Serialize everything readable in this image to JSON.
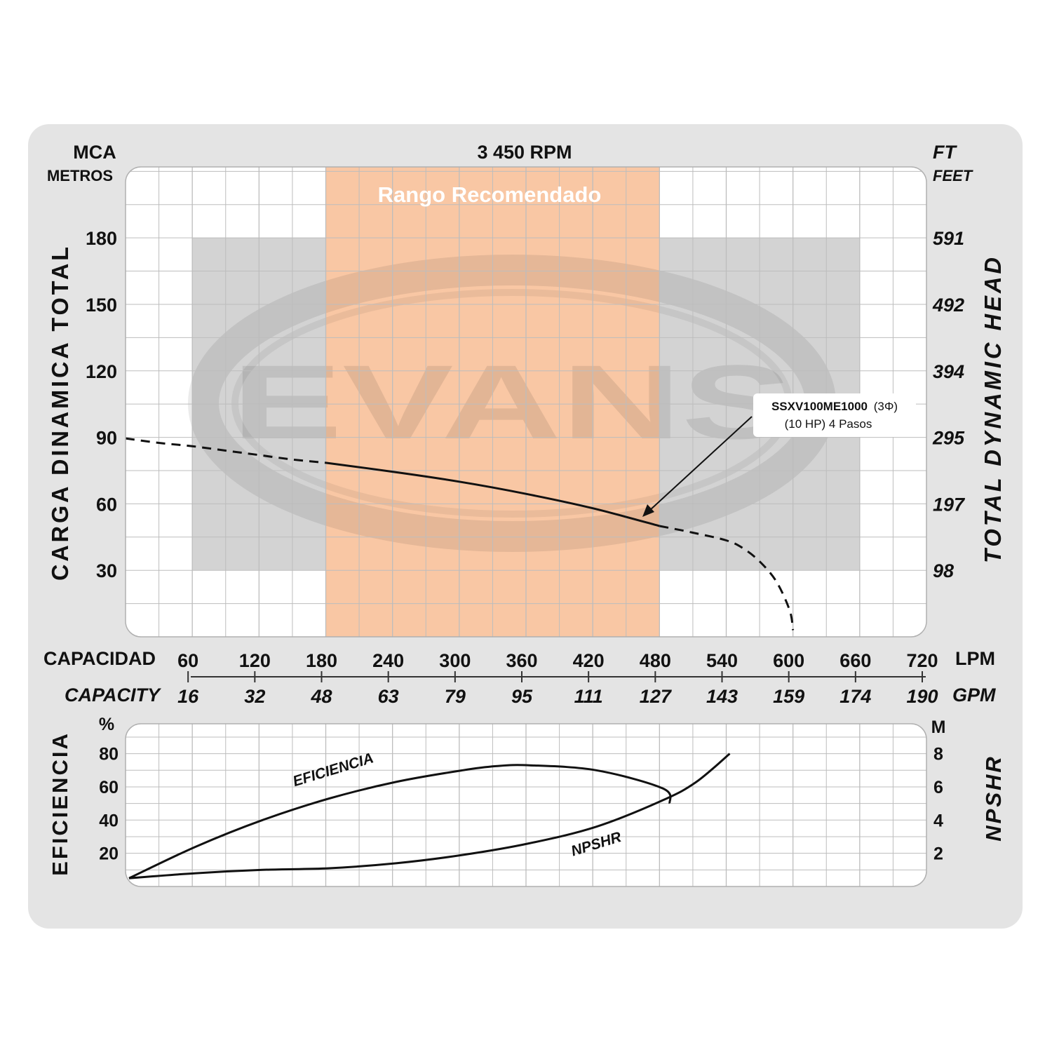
{
  "header": {
    "left_unit": "MCA",
    "left_unit_sub": "METROS",
    "title": "3 450 RPM",
    "right_unit": "FT",
    "right_unit_sub": "FEET"
  },
  "watermark": "EVANS",
  "recommended_range_label": "Rango Recomendado",
  "annotation": {
    "model": "SSXV100ME1000",
    "phase": "(3Φ)",
    "detail": "(10 HP) 4 Pasos"
  },
  "colors": {
    "frame": "#e4e4e4",
    "grid": "#bdbdbd",
    "recommended": "#f9c7a4",
    "gray_band": "#d3d3d3",
    "curve": "#111111"
  },
  "chart_data": [
    {
      "type": "line",
      "title": "3 450 RPM",
      "ylabel": "CARGA DINAMICA TOTAL",
      "ylabel_right": "TOTAL DYNAMIC HEAD",
      "ylim": [
        0,
        212
      ],
      "y_ticks": [
        {
          "m": 30,
          "label": "30",
          "ft": "98"
        },
        {
          "m": 60,
          "label": "60",
          "ft": "197"
        },
        {
          "m": 90,
          "label": "90",
          "ft": "295"
        },
        {
          "m": 120,
          "label": "120",
          "ft": "394"
        },
        {
          "m": 150,
          "label": "150",
          "ft": "492"
        },
        {
          "m": 180,
          "label": "180",
          "ft": "591"
        }
      ],
      "x_axis": {
        "label": "CAPACIDAD",
        "label_en": "CAPACITY",
        "unit": "LPM",
        "unit_en": "GPM",
        "xlim": [
          0,
          720
        ],
        "ticks": [
          {
            "lpm": 60,
            "label": "60",
            "gpm": "16"
          },
          {
            "lpm": 120,
            "label": "120",
            "gpm": "32"
          },
          {
            "lpm": 180,
            "label": "180",
            "gpm": "48"
          },
          {
            "lpm": 240,
            "label": "240",
            "gpm": "63"
          },
          {
            "lpm": 300,
            "label": "300",
            "gpm": "79"
          },
          {
            "lpm": 360,
            "label": "360",
            "gpm": "95"
          },
          {
            "lpm": 420,
            "label": "420",
            "gpm": "111"
          },
          {
            "lpm": 480,
            "label": "480",
            "gpm": "127"
          },
          {
            "lpm": 540,
            "label": "540",
            "gpm": "143"
          },
          {
            "lpm": 600,
            "label": "600",
            "gpm": "159"
          },
          {
            "lpm": 660,
            "label": "660",
            "gpm": "174"
          },
          {
            "lpm": 720,
            "label": "720",
            "gpm": "190"
          }
        ]
      },
      "recommended_range": [
        180,
        480
      ],
      "operating_band": {
        "x": [
          60,
          660
        ],
        "y": [
          30,
          180
        ]
      },
      "series": [
        {
          "name": "SSXV100ME1000 (3Φ) (10 HP) 4 Pasos",
          "segments": [
            {
              "style": "dashed",
              "points": [
                [
                  0,
                  89.5
                ],
                [
                  30,
                  87.5
                ],
                [
                  60,
                  86
                ],
                [
                  90,
                  84
                ],
                [
                  120,
                  82
                ],
                [
                  150,
                  80
                ],
                [
                  180,
                  78.5
                ]
              ]
            },
            {
              "style": "solid",
              "points": [
                [
                  180,
                  78.5
                ],
                [
                  240,
                  74.5
                ],
                [
                  300,
                  70
                ],
                [
                  360,
                  64.5
                ],
                [
                  420,
                  58
                ],
                [
                  480,
                  50
                ]
              ]
            },
            {
              "style": "dashed",
              "points": [
                [
                  480,
                  50
                ],
                [
                  510,
                  47
                ],
                [
                  540,
                  43.5
                ],
                [
                  555,
                  40
                ],
                [
                  570,
                  34
                ],
                [
                  585,
                  25
                ],
                [
                  597,
                  12
                ],
                [
                  600,
                  3
                ]
              ]
            }
          ]
        }
      ]
    },
    {
      "type": "line",
      "ylabel": "EFICIENCIA",
      "y_unit": "%",
      "ylim": [
        0,
        98
      ],
      "y_ticks": [
        20,
        40,
        60,
        80
      ],
      "ylabel_right": "NPSHR",
      "y2_unit": "M",
      "y2lim": [
        0,
        9.8
      ],
      "y2_ticks": [
        2,
        4,
        6,
        8
      ],
      "xlim": [
        0,
        720
      ],
      "series": [
        {
          "name": "EFICIENCIA",
          "axis": "left",
          "points": [
            [
              0,
              5
            ],
            [
              60,
              24
            ],
            [
              120,
              40
            ],
            [
              180,
              53
            ],
            [
              240,
              63
            ],
            [
              300,
              70
            ],
            [
              330,
              72.5
            ],
            [
              360,
              73
            ],
            [
              420,
              70
            ],
            [
              480,
              59
            ],
            [
              486,
              50
            ]
          ]
        },
        {
          "name": "NPSHR",
          "axis": "right",
          "points": [
            [
              0,
              0.5
            ],
            [
              60,
              0.8
            ],
            [
              120,
              1.0
            ],
            [
              180,
              1.1
            ],
            [
              240,
              1.4
            ],
            [
              300,
              1.9
            ],
            [
              360,
              2.6
            ],
            [
              420,
              3.6
            ],
            [
              480,
              5.2
            ],
            [
              510,
              6.3
            ],
            [
              540,
              8.0
            ]
          ]
        }
      ]
    }
  ]
}
